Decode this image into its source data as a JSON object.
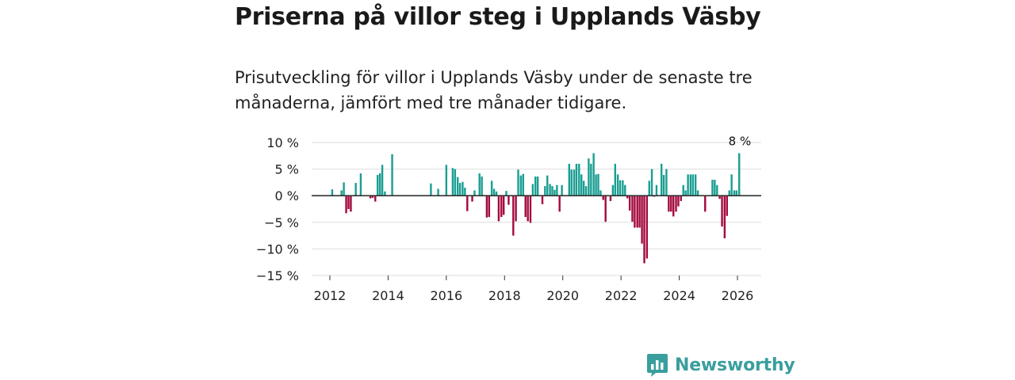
{
  "header": {
    "title": "Priserna på villor steg i Upplands Väsby",
    "subtitle": "Prisutveckling för villor i Upplands Väsby under de senaste tre månaderna, jämfört med tre månader tidigare."
  },
  "brand": {
    "name": "Newsworthy"
  },
  "colors": {
    "positive": "#1a9e92",
    "negative": "#a3093e",
    "grid": "#dddddd",
    "zero": "#333333",
    "brand": "#3a9e9e"
  },
  "chart_data": {
    "type": "bar",
    "title": "Priserna på villor steg i Upplands Väsby",
    "ylabel": "",
    "xlabel": "",
    "ylim": [
      -15,
      10
    ],
    "y_ticks": [
      10,
      5,
      0,
      -5,
      -10,
      -15
    ],
    "y_tick_labels": [
      "10 %",
      "5 %",
      "0 %",
      "−5 %",
      "−10 %",
      "−15 %"
    ],
    "x_ticks": [
      2012,
      2014,
      2016,
      2018,
      2020,
      2022,
      2024,
      2026
    ],
    "x_tick_labels": [
      "2012",
      "2014",
      "2016",
      "2018",
      "2020",
      "2022",
      "2024",
      "2026"
    ],
    "annotation": {
      "x": 2026.08,
      "value": 8,
      "label": "8 %"
    },
    "x": [
      2012.08,
      2012.4,
      2012.48,
      2012.56,
      2012.64,
      2012.72,
      2012.89,
      2013.06,
      2013.39,
      2013.47,
      2013.56,
      2013.64,
      2013.72,
      2013.8,
      2013.89,
      2014.14,
      2015.47,
      2015.72,
      2016.0,
      2016.22,
      2016.3,
      2016.39,
      2016.47,
      2016.56,
      2016.64,
      2016.72,
      2016.89,
      2016.97,
      2017.14,
      2017.22,
      2017.39,
      2017.47,
      2017.56,
      2017.64,
      2017.72,
      2017.8,
      2017.89,
      2017.97,
      2018.06,
      2018.14,
      2018.3,
      2018.39,
      2018.47,
      2018.56,
      2018.64,
      2018.72,
      2018.8,
      2018.89,
      2018.97,
      2019.06,
      2019.14,
      2019.3,
      2019.39,
      2019.47,
      2019.56,
      2019.64,
      2019.72,
      2019.8,
      2019.89,
      2019.97,
      2020.22,
      2020.3,
      2020.39,
      2020.47,
      2020.56,
      2020.64,
      2020.72,
      2020.8,
      2020.89,
      2020.97,
      2021.06,
      2021.14,
      2021.22,
      2021.3,
      2021.39,
      2021.47,
      2021.64,
      2021.72,
      2021.8,
      2021.89,
      2021.97,
      2022.06,
      2022.14,
      2022.22,
      2022.3,
      2022.39,
      2022.47,
      2022.56,
      2022.64,
      2022.72,
      2022.8,
      2022.89,
      2022.97,
      2023.06,
      2023.14,
      2023.22,
      2023.39,
      2023.47,
      2023.56,
      2023.64,
      2023.72,
      2023.8,
      2023.89,
      2023.97,
      2024.06,
      2024.14,
      2024.22,
      2024.3,
      2024.39,
      2024.47,
      2024.56,
      2024.64,
      2024.72,
      2024.89,
      2025.06,
      2025.14,
      2025.22,
      2025.3,
      2025.39,
      2025.47,
      2025.56,
      2025.64,
      2025.72,
      2025.8,
      2025.89,
      2025.97,
      2026.06
    ],
    "values": [
      1.2,
      1.0,
      2.5,
      -3.3,
      -2.5,
      -3.0,
      2.4,
      4.2,
      -0.5,
      -0.4,
      -1.1,
      3.9,
      4.2,
      5.8,
      0.8,
      7.8,
      2.3,
      1.3,
      5.8,
      5.2,
      5.0,
      3.5,
      2.4,
      2.6,
      1.5,
      -2.9,
      -1.1,
      1.0,
      4.2,
      3.6,
      -4.1,
      -4.0,
      2.8,
      1.3,
      0.8,
      -4.8,
      -4.0,
      -3.6,
      0.9,
      -1.7,
      -7.5,
      -4.8,
      4.9,
      3.8,
      4.1,
      -4.0,
      -4.8,
      -5.1,
      2.2,
      3.6,
      3.6,
      -1.6,
      1.8,
      3.8,
      2.2,
      1.8,
      1.1,
      2.0,
      -3.0,
      2.0,
      6.0,
      4.9,
      4.9,
      6.0,
      6.0,
      4.0,
      2.8,
      1.8,
      7.0,
      6.0,
      8.0,
      4.0,
      4.1,
      1.0,
      -0.8,
      -4.9,
      -1.0,
      2.0,
      6.0,
      4.0,
      2.9,
      2.9,
      2.0,
      -0.5,
      -2.8,
      -4.9,
      -6.0,
      -6.0,
      -6.0,
      -9.0,
      -12.7,
      -11.8,
      2.8,
      5.0,
      -0.2,
      2.0,
      6.0,
      3.9,
      5.0,
      -3.0,
      -3.0,
      -3.9,
      -3.0,
      -2.0,
      -1.0,
      2.0,
      1.0,
      4.0,
      4.0,
      4.0,
      4.0,
      1.0,
      -0.1,
      -3.0,
      0.1,
      3.0,
      3.0,
      2.0,
      -0.6,
      -5.8,
      -8.0,
      -3.8,
      1.0,
      4.0,
      1.0,
      1.0,
      8.0
    ]
  }
}
